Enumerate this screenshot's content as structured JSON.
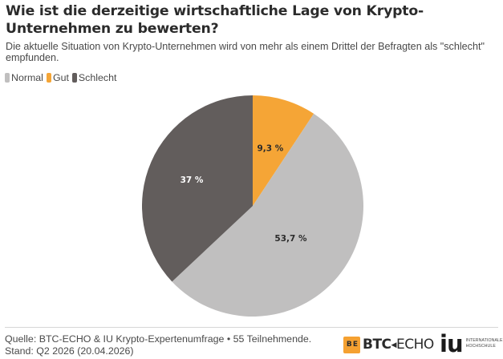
{
  "header": {
    "title": "Wie ist die derzeitige wirtschaftliche Lage von Krypto-Unternehmen zu bewerten?",
    "subtitle": "Die aktuelle Situation von Krypto-Unternehmen wird von mehr als einem Drittel der Befragten als \"schlecht\" empfunden."
  },
  "legend": [
    {
      "label": "Normal",
      "color": "#c0bfbf"
    },
    {
      "label": "Gut",
      "color": "#f5a536"
    },
    {
      "label": "Schlecht",
      "color": "#625d5c"
    }
  ],
  "chart_data": {
    "type": "pie",
    "title": "Wie ist die derzeitige wirtschaftliche Lage von Krypto-Unternehmen zu bewerten?",
    "start": "12 o'clock, clockwise",
    "slices": [
      {
        "name": "Gut",
        "value": 9.3,
        "label": "9,3 %",
        "color": "#f5a536",
        "label_color": "#2b2b2b"
      },
      {
        "name": "Normal",
        "value": 53.7,
        "label": "53,7 %",
        "color": "#c0bfbf",
        "label_color": "#2b2b2b"
      },
      {
        "name": "Schlecht",
        "value": 37,
        "label": "37 %",
        "color": "#625d5c",
        "label_color": "#ffffff"
      }
    ],
    "legend_position": "top-left"
  },
  "footer": {
    "source": "Quelle: BTC-ECHO & IU Krypto-Expertenumfrage • 55 Teilnehmende.",
    "date": "Stand: Q2 2026 (20.04.2026)",
    "logo_btc": {
      "mark": "B E",
      "word_bold": "BTC",
      "word_light": "ECHO"
    },
    "logo_iu": {
      "word": "iu",
      "line1": "INTERNATIONALE",
      "line2": "HOCHSCHULE"
    }
  }
}
